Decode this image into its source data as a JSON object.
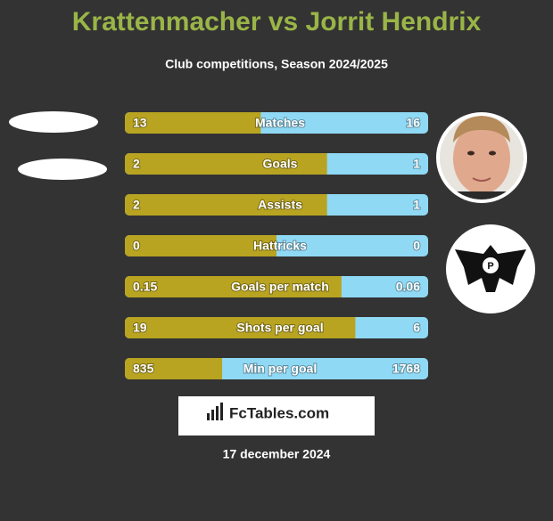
{
  "title": "Krattenmacher vs Jorrit Hendrix",
  "subtitle": "Club competitions, Season 2024/2025",
  "rows": [
    {
      "label": "Matches",
      "left": 13,
      "right": 16
    },
    {
      "label": "Goals",
      "left": 2,
      "right": 1
    },
    {
      "label": "Assists",
      "left": 2,
      "right": 1
    },
    {
      "label": "Hattricks",
      "left": 0,
      "right": 0
    },
    {
      "label": "Goals per match",
      "left": 0.15,
      "right": 0.06
    },
    {
      "label": "Shots per goal",
      "left": 19,
      "right": 6
    },
    {
      "label": "Min per goal",
      "left": 835,
      "right": 1768
    }
  ],
  "brand": "FcTables.com",
  "date": "17 december 2024"
}
